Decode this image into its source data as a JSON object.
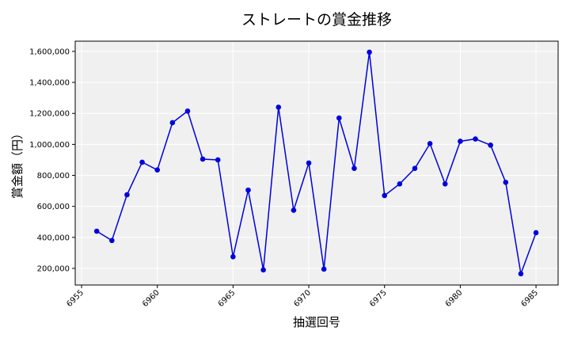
{
  "chart_data": {
    "type": "line",
    "title": "ストレートの賞金推移",
    "xlabel": "抽選回号",
    "ylabel": "賞金額（円）",
    "x": [
      6956,
      6957,
      6958,
      6959,
      6960,
      6961,
      6962,
      6963,
      6964,
      6965,
      6966,
      6967,
      6968,
      6969,
      6970,
      6971,
      6972,
      6973,
      6974,
      6975,
      6976,
      6977,
      6978,
      6979,
      6980,
      6981,
      6982,
      6983,
      6984,
      6985
    ],
    "series": [
      {
        "name": "ストレート",
        "color": "#0000dd",
        "values": [
          440000,
          380000,
          675000,
          885000,
          835000,
          1140000,
          1215000,
          905000,
          900000,
          275000,
          705000,
          190000,
          1240000,
          575000,
          880000,
          195000,
          1170000,
          845000,
          1595000,
          670000,
          745000,
          845000,
          1005000,
          745000,
          1020000,
          1035000,
          995000,
          755000,
          165000,
          430000
        ]
      }
    ],
    "xlim": [
      6954.58,
      6986.46
    ],
    "xticks": [
      6955,
      6960,
      6965,
      6970,
      6975,
      6980,
      6985
    ],
    "ylim": [
      92700,
      1666000
    ],
    "yticks": [
      {
        "value": 200000,
        "label": "200,000"
      },
      {
        "value": 400000,
        "label": "400,000"
      },
      {
        "value": 600000,
        "label": "600,000"
      },
      {
        "value": 800000,
        "label": "800,000"
      },
      {
        "value": 1000000,
        "label": "1,000,000"
      },
      {
        "value": 1200000,
        "label": "1,200,000"
      },
      {
        "value": 1400000,
        "label": "1,400,000"
      },
      {
        "value": 1600000,
        "label": "1,600,000"
      }
    ],
    "grid": true
  }
}
